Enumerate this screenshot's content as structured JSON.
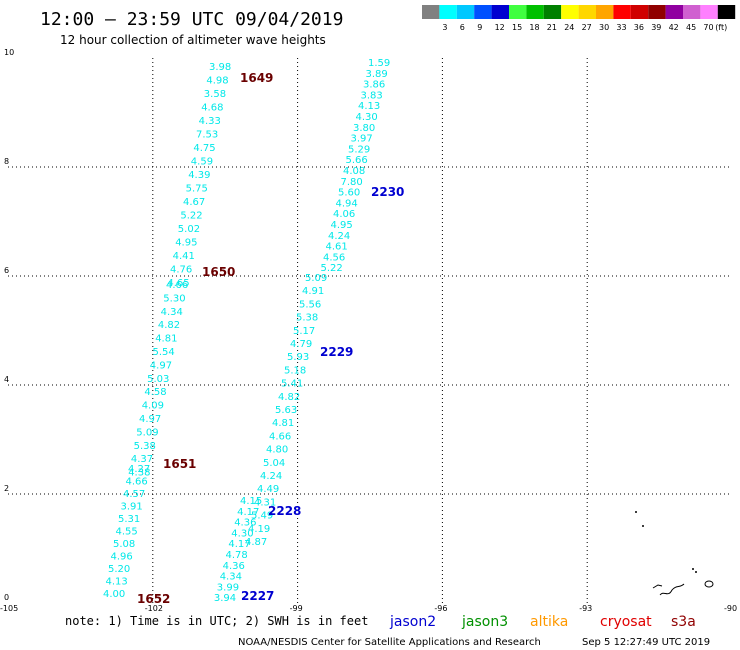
{
  "header": {
    "title": "12:00 – 23:59 UTC 09/04/2019",
    "subtitle": "12 hour collection of altimeter wave heights"
  },
  "legend": {
    "unit": "(ft)",
    "items": [
      {
        "color": "#808080",
        "label": ""
      },
      {
        "color": "#00ffff",
        "label": "3"
      },
      {
        "color": "#00c8ff",
        "label": "6"
      },
      {
        "color": "#0050ff",
        "label": "9"
      },
      {
        "color": "#0000d0",
        "label": "12"
      },
      {
        "color": "#40ff40",
        "label": "15"
      },
      {
        "color": "#00c000",
        "label": "18"
      },
      {
        "color": "#008000",
        "label": "21"
      },
      {
        "color": "#ffff00",
        "label": "24"
      },
      {
        "color": "#ffd700",
        "label": "27"
      },
      {
        "color": "#ffa500",
        "label": "30"
      },
      {
        "color": "#ff0000",
        "label": "33"
      },
      {
        "color": "#d00000",
        "label": "36"
      },
      {
        "color": "#900000",
        "label": "39"
      },
      {
        "color": "#9000a0",
        "label": "42"
      },
      {
        "color": "#d060d0",
        "label": "45"
      },
      {
        "color": "#ff80ff",
        "label": "70"
      },
      {
        "color": "#000000",
        "label": ""
      }
    ]
  },
  "axes": {
    "x_ticks": [
      "-105",
      "-102",
      "-99",
      "-96",
      "-93",
      "-90"
    ],
    "y_ticks": [
      "0",
      "2",
      "4",
      "6",
      "8",
      "10"
    ]
  },
  "passes": [
    {
      "id": "1649",
      "color": "#6a0000",
      "values": [
        "3.98",
        "4.98",
        "3.58",
        "4.68",
        "4.33",
        "7.53",
        "4.75",
        "4.59",
        "4.39",
        "5.75",
        "4.67",
        "5.22",
        "5.02",
        "4.95",
        "4.41",
        "4.76",
        "4.65"
      ]
    },
    {
      "id": "1650",
      "color": "#6a0000",
      "values": [
        "4.66",
        "5.30",
        "4.34",
        "4.82",
        "4.81",
        "5.54",
        "4.97",
        "5.03",
        "4.58",
        "4.09",
        "4.97",
        "5.09",
        "5.38",
        "4.37",
        "4.38"
      ]
    },
    {
      "id": "1651",
      "color": "#6a0000",
      "values": [
        "4.27",
        "4.66",
        "4.57",
        "3.91",
        "5.31",
        "4.55",
        "5.08",
        "4.96",
        "5.20",
        "4.13",
        "4.00"
      ]
    },
    {
      "id": "1652",
      "color": "#6a0000",
      "values": []
    },
    {
      "id": "2230",
      "color": "#0000d0",
      "values": [
        "1.59",
        "3.89",
        "3.86",
        "3.83",
        "4.13",
        "4.30",
        "3.80",
        "3.97",
        "5.29",
        "5.66",
        "4.08",
        "7.80",
        "5.60",
        "4.94",
        "4.06",
        "4.95",
        "4.24",
        "4.61",
        "4.56",
        "5.22"
      ]
    },
    {
      "id": "2229",
      "color": "#0000d0",
      "values": [
        "5.09",
        "4.91",
        "5.56",
        "5.38",
        "5.17",
        "4.79",
        "5.93",
        "5.18",
        "5.41",
        "4.82",
        "5.63",
        "4.81",
        "4.66",
        "4.80",
        "5.04",
        "4.24",
        "4.49",
        "4.31",
        "5.49",
        "4.19",
        "4.87"
      ]
    },
    {
      "id": "2228",
      "color": "#0000d0",
      "values": [
        "4.15",
        "4.17",
        "4.36",
        "4.30",
        "4.17",
        "4.78",
        "4.36",
        "4.34",
        "3.99",
        "3.94"
      ]
    },
    {
      "id": "2227",
      "color": "#0000d0",
      "values": []
    }
  ],
  "footer": {
    "note": "note: 1) Time is in UTC; 2) SWH is in feet",
    "satellites": [
      {
        "name": "jason2",
        "color": "#0000d0"
      },
      {
        "name": "jason3",
        "color": "#009000"
      },
      {
        "name": "altika",
        "color": "#ff9900"
      },
      {
        "name": "cryosat",
        "color": "#e00000"
      },
      {
        "name": "s3a",
        "color": "#900000"
      }
    ],
    "credit": "NOAA/NESDIS Center for Satellite Applications and Research",
    "timestamp": "Sep  5 12:27:49 UTC 2019"
  }
}
